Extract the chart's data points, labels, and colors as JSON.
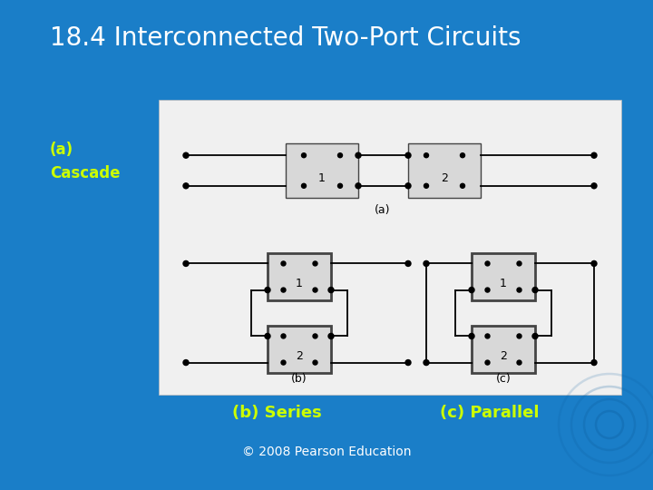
{
  "title": "18.4 Interconnected Two-Port Circuits",
  "title_color": "#ffffff",
  "title_fontsize": 20,
  "bg_color": "#1a7ec8",
  "label_a": "(a)\nCascade",
  "label_b": "(b) Series",
  "label_c": "(c) Parallel",
  "copyright": "© 2008 Pearson Education",
  "yellow_color": "#ccff00",
  "white_color": "#ffffff",
  "panel_bg": "#f0f0f0",
  "box_bg": "#d8d8d8",
  "box_border": "#444444"
}
